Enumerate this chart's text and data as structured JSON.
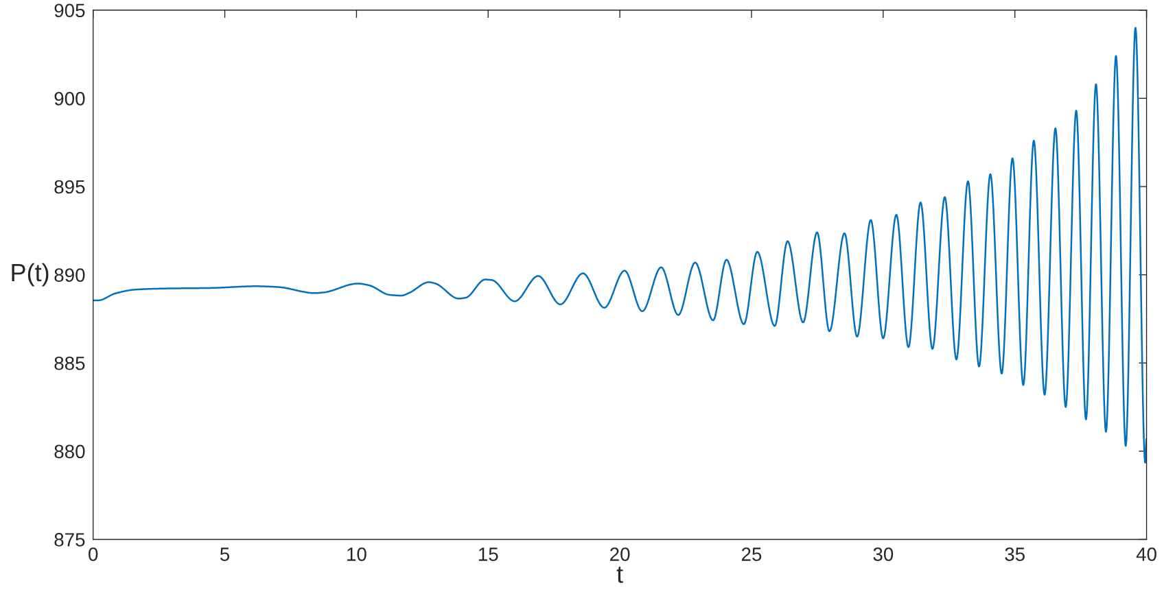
{
  "chart_data": {
    "type": "line",
    "xlabel": "t",
    "ylabel": "P(t)",
    "xlim": [
      0,
      40
    ],
    "xticks": [
      0,
      5,
      10,
      15,
      20,
      25,
      30,
      35,
      40
    ],
    "ylim": [
      875,
      905
    ],
    "yticks": [
      875,
      880,
      885,
      890,
      895,
      900,
      905
    ],
    "grid": false,
    "legend": false,
    "marker": "none",
    "line_style": "solid",
    "series": [
      {
        "color": "#0072bd",
        "x": [
          0,
          0.2,
          0.84,
          1.61,
          2.73,
          4.45,
          6.18,
          7.04,
          8.42,
          8.76,
          10.05,
          10.48,
          11.26,
          11.71,
          12.01,
          12.75,
          13.0,
          13.88,
          14.15,
          14.89,
          15.14,
          16.01,
          16.9,
          17.74,
          18.6,
          19.41,
          20.18,
          20.85,
          21.57,
          22.22,
          22.86,
          23.54,
          24.05,
          24.71,
          25.22,
          25.88,
          26.37,
          26.96,
          27.49,
          27.96,
          28.53,
          29.01,
          29.53,
          30.0,
          30.5,
          30.96,
          31.42,
          31.87,
          32.34,
          32.78,
          33.22,
          33.64,
          34.07,
          34.5,
          34.91,
          35.32,
          35.72,
          36.13,
          36.54,
          36.93,
          37.33,
          37.7,
          38.08,
          38.46,
          38.84,
          39.21,
          39.58,
          39.95,
          40
        ],
        "values": [
          888.55,
          888.55,
          888.94,
          889.16,
          889.22,
          889.25,
          889.35,
          889.3,
          888.96,
          889.0,
          889.5,
          889.4,
          888.86,
          888.82,
          888.98,
          889.58,
          889.5,
          888.65,
          888.7,
          889.73,
          889.7,
          888.5,
          889.93,
          888.32,
          890.08,
          888.13,
          890.23,
          887.93,
          890.42,
          887.72,
          890.69,
          887.42,
          890.85,
          887.2,
          891.3,
          887.1,
          891.9,
          887.3,
          892.4,
          886.8,
          892.35,
          886.5,
          893.1,
          886.4,
          893.4,
          885.9,
          894.1,
          885.8,
          894.4,
          885.2,
          895.3,
          884.8,
          895.7,
          884.4,
          896.6,
          883.75,
          897.6,
          883.2,
          898.3,
          882.5,
          899.3,
          881.8,
          900.8,
          881.1,
          902.4,
          880.3,
          904.0,
          879.35,
          880.7
        ]
      }
    ]
  }
}
